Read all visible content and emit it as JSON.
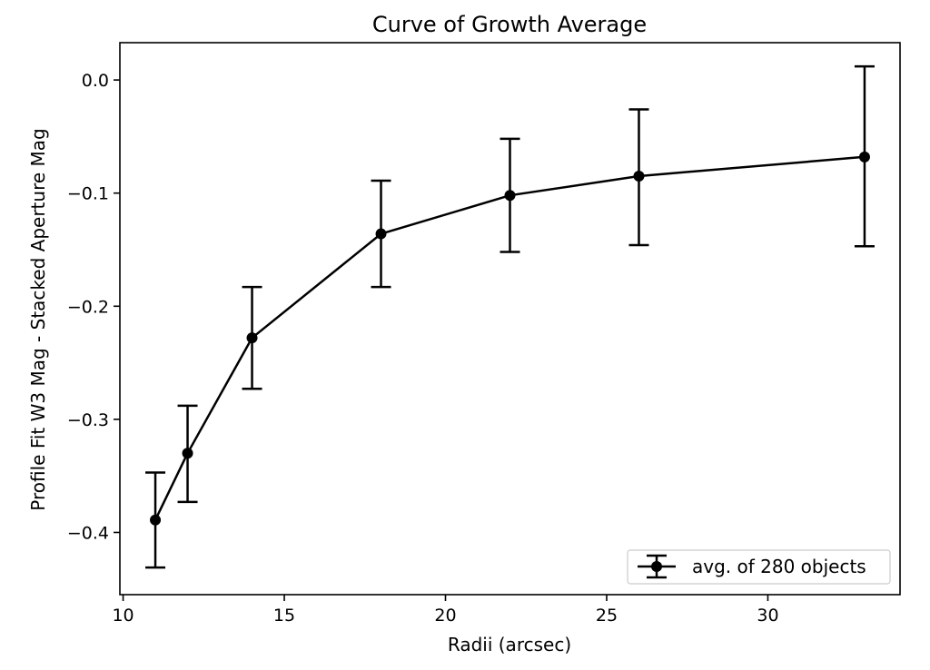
{
  "chart_data": {
    "type": "line",
    "title": "Curve of Growth Average",
    "xlabel": "Radii (arcsec)",
    "ylabel": "Profile Fit W3 Mag - Stacked Aperture Mag",
    "xlim": [
      9.9,
      34.1
    ],
    "ylim": [
      -0.455,
      0.033
    ],
    "xticks": [
      10,
      15,
      20,
      25,
      30
    ],
    "yticks": [
      0.0,
      -0.1,
      -0.2,
      -0.3,
      -0.4
    ],
    "xtick_labels": [
      "10",
      "15",
      "20",
      "25",
      "30"
    ],
    "ytick_labels": [
      "0.0",
      "−0.1",
      "−0.2",
      "−0.3",
      "−0.4"
    ],
    "grid": false,
    "legend_position": "lower-right",
    "series": [
      {
        "name": "avg. of 280 objects",
        "color": "#000000",
        "marker": "circle",
        "x": [
          11,
          12,
          14,
          18,
          22,
          26,
          33
        ],
        "y": [
          -0.389,
          -0.33,
          -0.228,
          -0.136,
          -0.102,
          -0.085,
          -0.068
        ],
        "yerr_low": [
          -0.431,
          -0.373,
          -0.273,
          -0.183,
          -0.152,
          -0.146,
          -0.147
        ],
        "yerr_high": [
          -0.347,
          -0.288,
          -0.183,
          -0.089,
          -0.052,
          -0.026,
          0.012
        ]
      }
    ]
  }
}
